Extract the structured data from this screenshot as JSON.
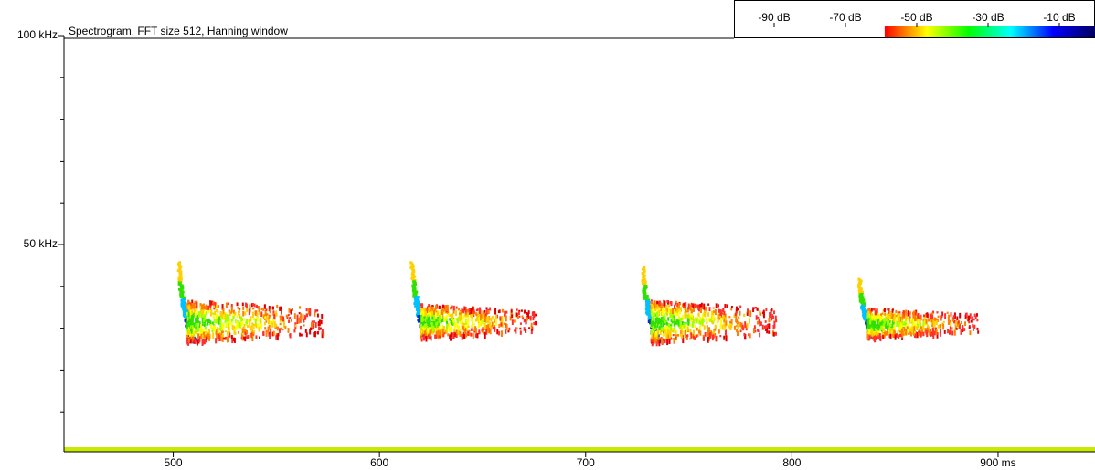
{
  "chart_data": {
    "type": "spectrogram",
    "title": "Spectrogram, FFT size 512, Hanning window",
    "xlim": [
      447,
      947
    ],
    "xticks": [
      500,
      600,
      700,
      800,
      {
        "value": 900,
        "label": "900 ms"
      }
    ],
    "ylim": [
      0,
      100
    ],
    "yticks": [
      {
        "value": 50,
        "label": "50 kHz"
      },
      {
        "value": 100,
        "label": "100 kHz"
      }
    ],
    "yminorticks": [
      10,
      20,
      30,
      40,
      60,
      70,
      80,
      90
    ],
    "colorbar": {
      "clim": [
        -100,
        0
      ],
      "ticks": [
        {
          "value": -90,
          "label": "-90 dB"
        },
        {
          "value": -70,
          "label": "-70 dB"
        },
        {
          "value": -50,
          "label": "-50 dB"
        },
        {
          "value": -30,
          "label": "-30 dB"
        },
        {
          "value": -10,
          "label": "-10 dB"
        }
      ],
      "colors": [
        "#ff0000",
        "#ffff00",
        "#00ff00",
        "#00ffff",
        "#0000ff",
        "#000060"
      ],
      "color_from": -59
    },
    "calls": [
      {
        "start": 502,
        "end": 573,
        "f_high": 46,
        "f_low": 27,
        "tail_top": 37
      },
      {
        "start": 615,
        "end": 676,
        "f_high": 46,
        "f_low": 28,
        "tail_top": 36
      },
      {
        "start": 727,
        "end": 792,
        "f_high": 45,
        "f_low": 27,
        "tail_top": 37
      },
      {
        "start": 832,
        "end": 890,
        "f_high": 42,
        "f_low": 28,
        "tail_top": 35
      }
    ]
  }
}
